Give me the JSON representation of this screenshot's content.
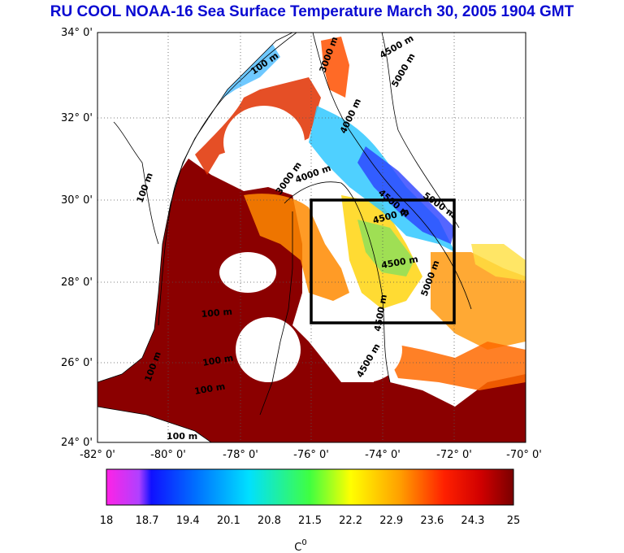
{
  "title": "RU COOL  NOAA-16 Sea Surface Temperature March 30, 2005 1904 GMT",
  "map": {
    "lat_ticks": [
      "34° 0'",
      "32° 0'",
      "30° 0'",
      "28° 0'",
      "26° 0'",
      "24° 0'"
    ],
    "lon_ticks": [
      "-82° 0'",
      "-80° 0'",
      "-78° 0'",
      "-76° 0'",
      "-74° 0'",
      "-72° 0'",
      "-70° 0'"
    ],
    "lat_range": [
      24,
      34
    ],
    "lon_range": [
      -82,
      -70
    ],
    "box": {
      "lon": [
        -76,
        -72
      ],
      "lat": [
        27,
        30
      ]
    },
    "contour_labels": [
      "100 m",
      "3000 m",
      "4500 m",
      "5000 m",
      "4000 m",
      "3000 m",
      "4000 m",
      "4500 m",
      "100 m",
      "4500 m",
      "4500 m",
      "5000 m",
      "100 m",
      "100 m",
      "100 m",
      "4500 m",
      "100 m",
      "4500 m",
      "5000 m",
      "100 m"
    ]
  },
  "colorbar": {
    "ticks": [
      "18",
      "18.7",
      "19.4",
      "20.1",
      "20.8",
      "21.5",
      "22.2",
      "22.9",
      "23.6",
      "24.3",
      "25"
    ],
    "unit": "C",
    "unit_sup": "0",
    "range": [
      18,
      25
    ]
  },
  "colors": {
    "title": "#0a0ad2",
    "box": "#000000",
    "land": "#ffffff",
    "cloud": "#ffffff"
  }
}
